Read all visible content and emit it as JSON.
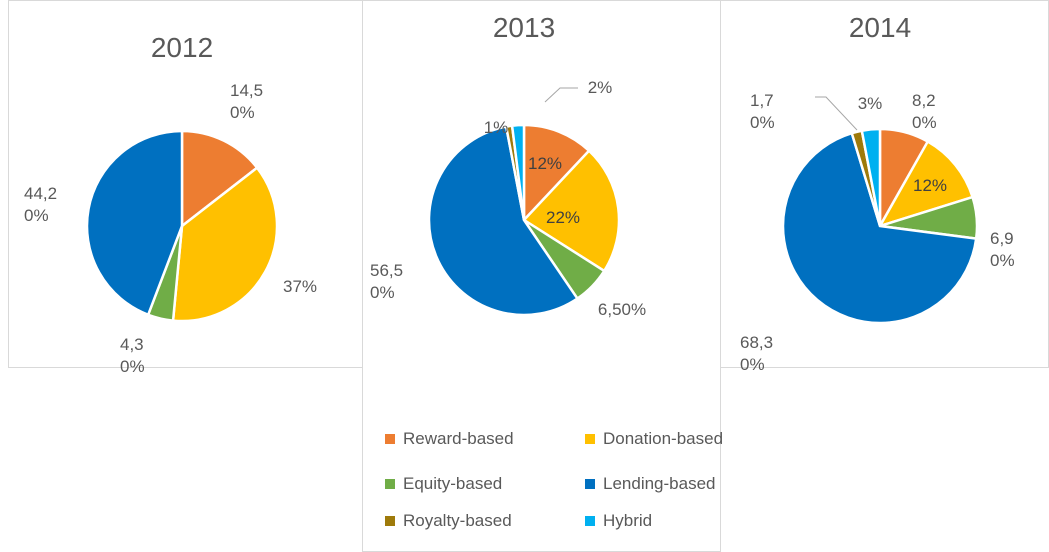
{
  "chart_data": [
    {
      "type": "pie",
      "title": "2012",
      "categories": [
        "Reward-based",
        "Donation-based",
        "Equity-based",
        "Lending-based"
      ],
      "values": [
        14.5,
        37,
        4.3,
        44.2
      ],
      "value_labels": [
        "14,50%",
        "37%",
        "4,30%",
        "44,20%"
      ],
      "colors": [
        "#ed7d31",
        "#ffc000",
        "#70ad47",
        "#0070c0"
      ]
    },
    {
      "type": "pie",
      "title": "2013",
      "categories": [
        "Reward-based",
        "Donation-based",
        "Equity-based",
        "Lending-based",
        "Royalty-based",
        "Hybrid"
      ],
      "values": [
        12,
        22,
        6.5,
        56.5,
        1,
        2
      ],
      "value_labels": [
        "12%",
        "22%",
        "6,50%",
        "56,50%",
        "1%",
        "2%"
      ],
      "colors": [
        "#ed7d31",
        "#ffc000",
        "#70ad47",
        "#0070c0",
        "#9e7a0a",
        "#00b0f0"
      ]
    },
    {
      "type": "pie",
      "title": "2014",
      "categories": [
        "Reward-based",
        "Donation-based",
        "Equity-based",
        "Lending-based",
        "Royalty-based",
        "Hybrid"
      ],
      "values": [
        8.2,
        12,
        6.9,
        68.3,
        1.7,
        3
      ],
      "value_labels": [
        "8,20%",
        "12%",
        "6,90%",
        "68,30%",
        "1,70%",
        "3%"
      ],
      "colors": [
        "#ed7d31",
        "#ffc000",
        "#70ad47",
        "#0070c0",
        "#9e7a0a",
        "#00b0f0"
      ]
    }
  ]
}
